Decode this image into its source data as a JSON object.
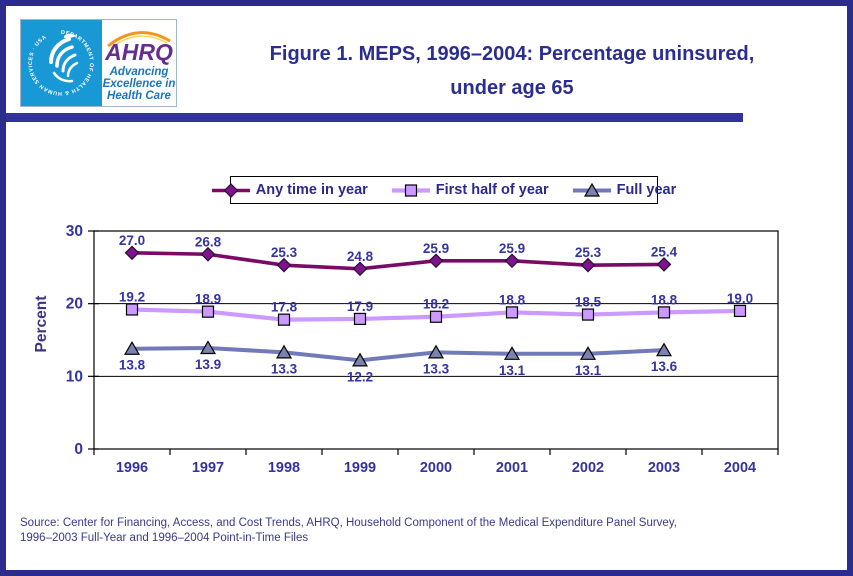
{
  "header": {
    "logo": {
      "hhs_circle_text": "DEPARTMENT OF HEALTH & HUMAN SERVICES · USA",
      "ahrq_acronym": "AHRQ",
      "ahrq_tagline_line1": "Advancing",
      "ahrq_tagline_line2": "Excellence in",
      "ahrq_tagline_line3": "Health Care"
    },
    "title_line1": "Figure 1. MEPS, 1996–2004: Percentage uninsured,",
    "title_line2": "under age 65"
  },
  "chart_data": {
    "type": "line",
    "title": "Figure 1. MEPS, 1996–2004: Percentage uninsured, under age 65",
    "categories": [
      "1996",
      "1997",
      "1998",
      "1999",
      "2000",
      "2001",
      "2002",
      "2003",
      "2004"
    ],
    "series": [
      {
        "name": "Any time in year",
        "marker": "diamond",
        "line_color": "#7A0A64",
        "marker_fill": "#7D138D",
        "label_position": "above",
        "values": [
          27.0,
          26.8,
          25.3,
          24.8,
          25.9,
          25.9,
          25.3,
          25.4,
          null
        ]
      },
      {
        "name": "First half of year",
        "marker": "square",
        "line_color": "#CC99FF",
        "marker_fill": "#CC99FF",
        "label_position": "above",
        "values": [
          19.2,
          18.9,
          17.8,
          17.9,
          18.2,
          18.8,
          18.5,
          18.8,
          19.0
        ]
      },
      {
        "name": "Full year",
        "marker": "triangle",
        "line_color": "#7279B8",
        "marker_fill": "#7C82AE",
        "label_position": "below",
        "values": [
          13.8,
          13.9,
          13.3,
          12.2,
          13.3,
          13.1,
          13.1,
          13.6,
          null
        ]
      }
    ],
    "xlabel": "",
    "ylabel": "Percent",
    "ylim": [
      0,
      30
    ],
    "yticks": [
      0,
      10,
      20,
      30
    ],
    "grid": "horizontal gridlines at 10 and 20, plot area boxed in black",
    "legend_position": "top"
  },
  "footer": {
    "source_line1": "Source: Center for Financing, Access, and Cost Trends, AHRQ, Household Component of the Medical Expenditure Panel Survey,",
    "source_line2": "1996–2003 Full-Year and 1996–2004 Point-in-Time Files"
  },
  "colors": {
    "outer_border": "#2C2B8E",
    "divider_band": "#32329B",
    "title_text": "#2B2E8F",
    "axis_label_text": "#3434A0",
    "axis_title_text": "#3D3380",
    "legend_text": "#2B2A8C",
    "source_text": "#3A3A85",
    "hhs_panel_blue": "#1899D6",
    "ahrq_purple": "#662D91",
    "ahrq_arc_orange": "#F7941D",
    "ahrq_tagline_blue": "#1B75BC"
  }
}
